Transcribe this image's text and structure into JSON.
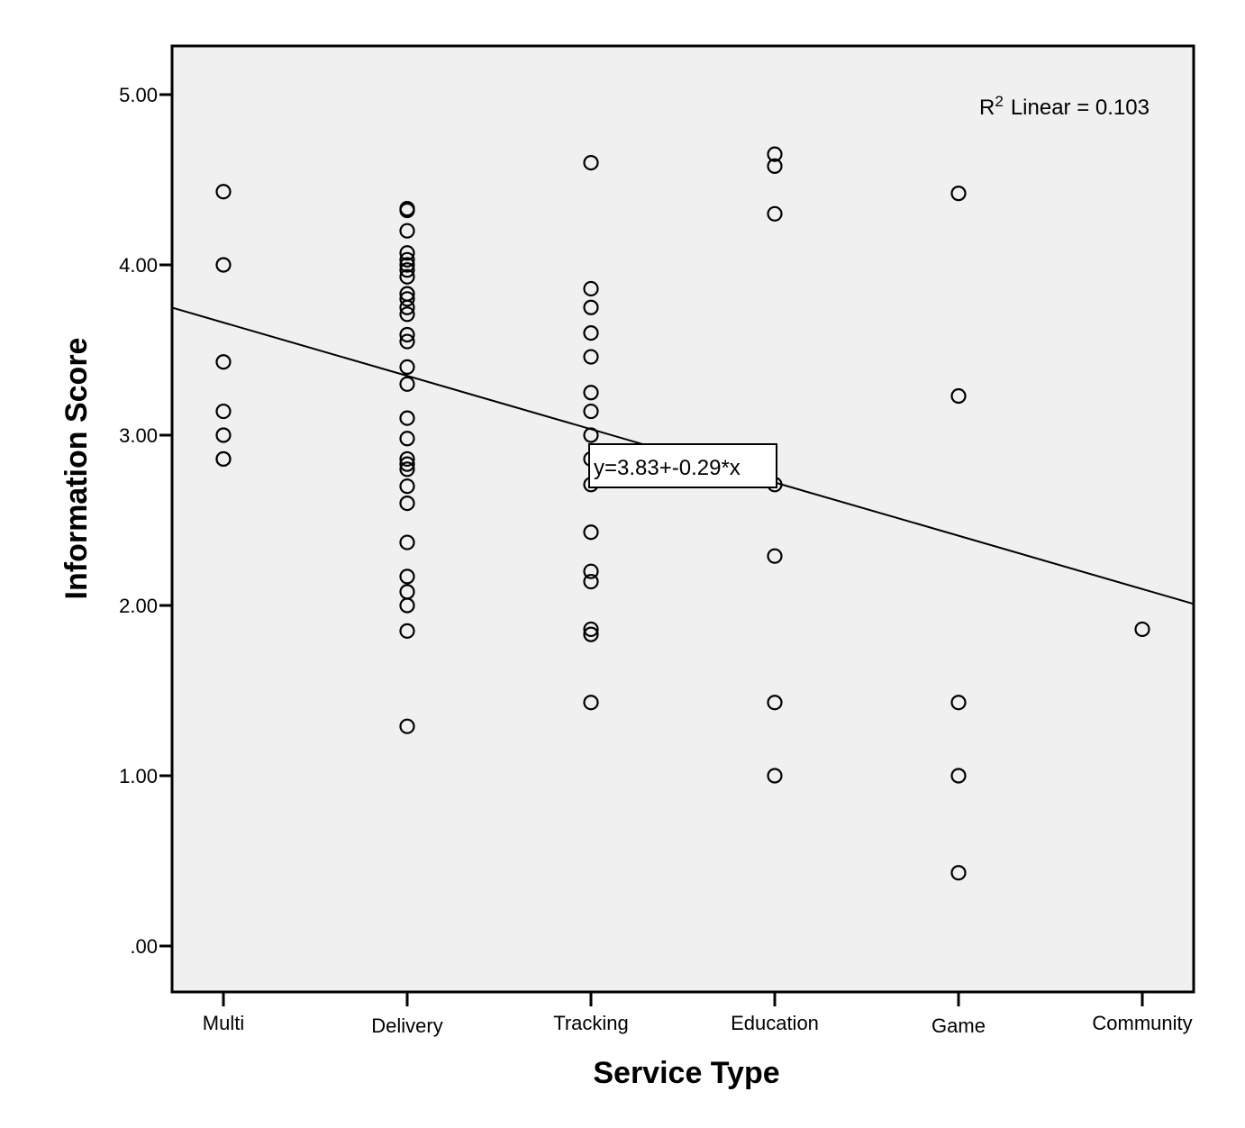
{
  "chart_data": {
    "type": "scatter",
    "title": "",
    "xlabel": "Service Type",
    "ylabel": "Information Score",
    "categories": [
      "Multi",
      "Delivery",
      "Tracking",
      "Education",
      "Game",
      "Community"
    ],
    "yticks": [
      ".00",
      "1.00",
      "2.00",
      "3.00",
      "4.00",
      "5.00"
    ],
    "ylim": [
      -0.28,
      5.28
    ],
    "xlim": [
      0.28,
      6.28
    ],
    "grid": false,
    "colors": {
      "background": "#f0f0f0",
      "marker": "#000000",
      "line": "#000000"
    },
    "points": [
      {
        "x": 1,
        "y": 4.43
      },
      {
        "x": 1,
        "y": 4.0
      },
      {
        "x": 1,
        "y": 3.43
      },
      {
        "x": 1,
        "y": 3.14
      },
      {
        "x": 1,
        "y": 3.0
      },
      {
        "x": 1,
        "y": 2.86
      },
      {
        "x": 1,
        "y": 2.86
      },
      {
        "x": 2,
        "y": 4.33
      },
      {
        "x": 2,
        "y": 4.32
      },
      {
        "x": 2,
        "y": 4.2
      },
      {
        "x": 2,
        "y": 4.07
      },
      {
        "x": 2,
        "y": 4.03
      },
      {
        "x": 2,
        "y": 4.0
      },
      {
        "x": 2,
        "y": 3.97
      },
      {
        "x": 2,
        "y": 3.93
      },
      {
        "x": 2,
        "y": 3.83
      },
      {
        "x": 2,
        "y": 3.8
      },
      {
        "x": 2,
        "y": 3.75
      },
      {
        "x": 2,
        "y": 3.71
      },
      {
        "x": 2,
        "y": 3.59
      },
      {
        "x": 2,
        "y": 3.55
      },
      {
        "x": 2,
        "y": 3.4
      },
      {
        "x": 2,
        "y": 3.3
      },
      {
        "x": 2,
        "y": 3.1
      },
      {
        "x": 2,
        "y": 2.98
      },
      {
        "x": 2,
        "y": 2.86
      },
      {
        "x": 2,
        "y": 2.83
      },
      {
        "x": 2,
        "y": 2.8
      },
      {
        "x": 2,
        "y": 2.7
      },
      {
        "x": 2,
        "y": 2.6
      },
      {
        "x": 2,
        "y": 2.37
      },
      {
        "x": 2,
        "y": 2.17
      },
      {
        "x": 2,
        "y": 2.08
      },
      {
        "x": 2,
        "y": 2.0
      },
      {
        "x": 2,
        "y": 1.85
      },
      {
        "x": 2,
        "y": 1.29
      },
      {
        "x": 3,
        "y": 4.6
      },
      {
        "x": 3,
        "y": 3.86
      },
      {
        "x": 3,
        "y": 3.75
      },
      {
        "x": 3,
        "y": 3.6
      },
      {
        "x": 3,
        "y": 3.46
      },
      {
        "x": 3,
        "y": 3.25
      },
      {
        "x": 3,
        "y": 3.14
      },
      {
        "x": 3,
        "y": 3.0
      },
      {
        "x": 3,
        "y": 2.86
      },
      {
        "x": 3,
        "y": 2.71
      },
      {
        "x": 3,
        "y": 2.43
      },
      {
        "x": 3,
        "y": 2.2
      },
      {
        "x": 3,
        "y": 2.14
      },
      {
        "x": 3,
        "y": 1.86
      },
      {
        "x": 3,
        "y": 1.83
      },
      {
        "x": 3,
        "y": 1.43
      },
      {
        "x": 4,
        "y": 4.65
      },
      {
        "x": 4,
        "y": 4.58
      },
      {
        "x": 4,
        "y": 4.3
      },
      {
        "x": 4,
        "y": 2.71
      },
      {
        "x": 4,
        "y": 2.29
      },
      {
        "x": 4,
        "y": 1.43
      },
      {
        "x": 4,
        "y": 1.0
      },
      {
        "x": 5,
        "y": 4.42
      },
      {
        "x": 5,
        "y": 3.23
      },
      {
        "x": 5,
        "y": 1.43
      },
      {
        "x": 5,
        "y": 1.0
      },
      {
        "x": 5,
        "y": 0.43
      },
      {
        "x": 6,
        "y": 1.86
      }
    ],
    "fit_line": {
      "intercept": 3.83,
      "slope": -0.29
    },
    "annotations": {
      "r2_prefix": "R",
      "r2_sup": "2",
      "r2_text": "Linear = 0.103",
      "equation": "y=3.83+-0.29*x"
    }
  }
}
